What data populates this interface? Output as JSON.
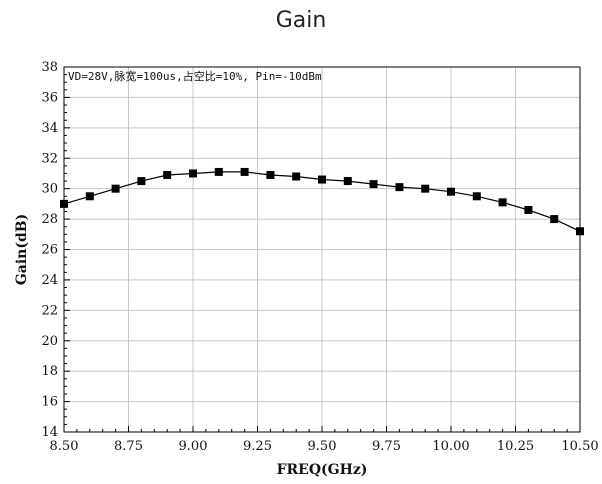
{
  "chart_data": {
    "type": "line",
    "title": "Gain",
    "xlabel": "FREQ(GHz)",
    "ylabel": "Gain(dB)",
    "annotation": "VD=28V,脉宽=100us,占空比=10%, Pin=-10dBm",
    "xlim": [
      8.5,
      10.5
    ],
    "ylim": [
      14,
      38
    ],
    "x_ticks": [
      8.5,
      8.75,
      9.0,
      9.25,
      9.5,
      9.75,
      10.0,
      10.25,
      10.5
    ],
    "x_tick_labels": [
      "8.50",
      "8.75",
      "9.00",
      "9.25",
      "9.50",
      "9.75",
      "10.00",
      "10.25",
      "10.50"
    ],
    "y_ticks": [
      14,
      16,
      18,
      20,
      22,
      24,
      26,
      28,
      30,
      32,
      34,
      36,
      38
    ],
    "y_tick_labels": [
      "14",
      "16",
      "18",
      "20",
      "22",
      "24",
      "26",
      "28",
      "30",
      "32",
      "34",
      "36",
      "38"
    ],
    "grid": true,
    "line_color": "#000000",
    "marker": "square",
    "series": [
      {
        "x": [
          8.5,
          8.6,
          8.7,
          8.8,
          8.9,
          9.0,
          9.1,
          9.2,
          9.3,
          9.4,
          9.5,
          9.6,
          9.7,
          9.8,
          9.9,
          10.0,
          10.1,
          10.2,
          10.3,
          10.4,
          10.5
        ],
        "values": [
          29.0,
          29.5,
          30.0,
          30.5,
          30.9,
          31.0,
          31.1,
          31.1,
          30.9,
          30.8,
          30.6,
          30.5,
          30.3,
          30.1,
          30.0,
          29.8,
          29.5,
          29.1,
          28.6,
          28.0,
          27.2
        ]
      }
    ]
  }
}
